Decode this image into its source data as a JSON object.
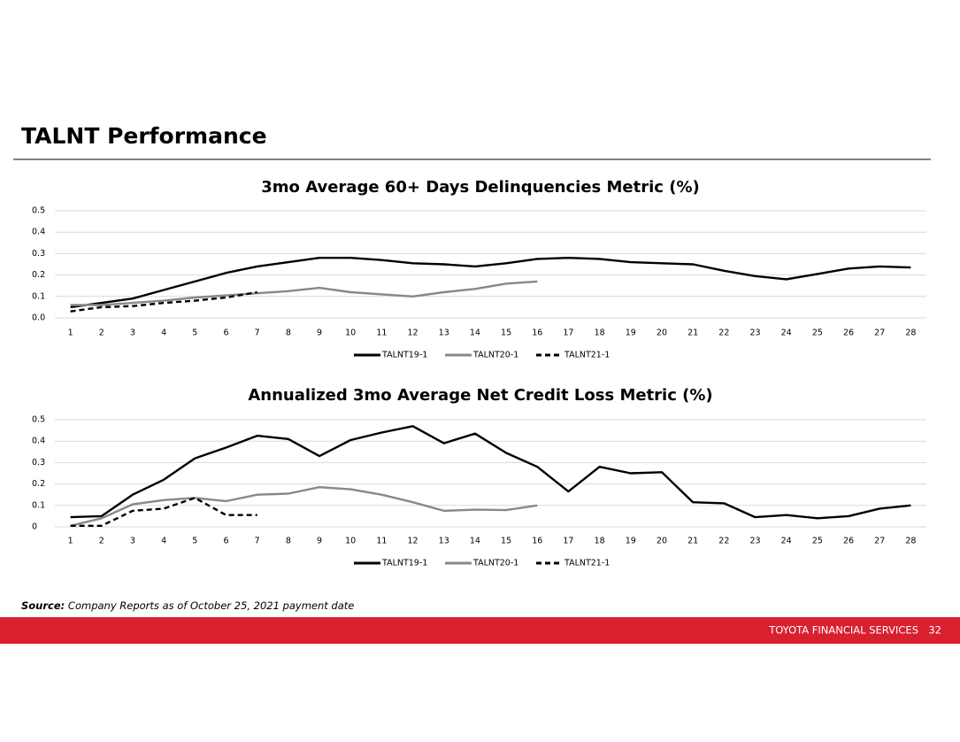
{
  "page": {
    "title": "TALNT Performance",
    "source": {
      "label": "Source:",
      "text": " Company Reports as of October 25, 2021 payment date"
    },
    "footer": {
      "company": "TOYOTA FINANCIAL SERVICES",
      "page": 32
    }
  },
  "chart_data": [
    {
      "type": "line",
      "title": "3mo Average 60+ Days Delinquencies Metric (%)",
      "categories": [
        "1",
        "2",
        "3",
        "4",
        "5",
        "6",
        "7",
        "8",
        "9",
        "10",
        "11",
        "12",
        "13",
        "14",
        "15",
        "16",
        "17",
        "18",
        "19",
        "20",
        "21",
        "22",
        "23",
        "24",
        "25",
        "26",
        "27",
        "28"
      ],
      "ylim": [
        0,
        0.5
      ],
      "yticks": [
        {
          "value": 0,
          "label": "0.0"
        },
        0.1,
        0.2,
        0.3,
        0.4,
        0.5
      ],
      "grid": true,
      "legend": "bottom",
      "series": [
        {
          "name": "TALNT19-1",
          "color": "#000000",
          "dashed": false,
          "values": [
            0.05,
            0.07,
            0.09,
            0.13,
            0.17,
            0.21,
            0.24,
            0.26,
            0.28,
            0.28,
            0.27,
            0.255,
            0.25,
            0.24,
            0.255,
            0.275,
            0.28,
            0.275,
            0.26,
            0.255,
            0.25,
            0.22,
            0.195,
            0.18,
            0.205,
            0.23,
            0.24,
            0.235
          ]
        },
        {
          "name": "TALNT20-1",
          "color": "#888888",
          "dashed": false,
          "values": [
            0.06,
            0.06,
            0.07,
            0.08,
            0.095,
            0.105,
            0.115,
            0.125,
            0.14,
            0.12,
            0.11,
            0.1,
            0.12,
            0.135,
            0.16,
            0.17,
            null,
            null,
            null,
            null,
            null,
            null,
            null,
            null,
            null,
            null,
            null,
            null
          ]
        },
        {
          "name": "TALNT21-1",
          "color": "#000000",
          "dashed": true,
          "values": [
            0.03,
            0.05,
            0.055,
            0.07,
            0.08,
            0.095,
            0.12,
            null,
            null,
            null,
            null,
            null,
            null,
            null,
            null,
            null,
            null,
            null,
            null,
            null,
            null,
            null,
            null,
            null,
            null,
            null,
            null,
            null
          ]
        }
      ]
    },
    {
      "type": "line",
      "title": "Annualized 3mo Average Net Credit Loss Metric (%)",
      "categories": [
        "1",
        "2",
        "3",
        "4",
        "5",
        "6",
        "7",
        "8",
        "9",
        "10",
        "11",
        "12",
        "13",
        "14",
        "15",
        "16",
        "17",
        "18",
        "19",
        "20",
        "21",
        "22",
        "23",
        "24",
        "25",
        "26",
        "27",
        "28"
      ],
      "ylim": [
        0,
        0.5
      ],
      "yticks": [
        0,
        0.1,
        0.2,
        0.3,
        0.4,
        0.5
      ],
      "grid": true,
      "legend": "bottom",
      "series": [
        {
          "name": "TALNT19-1",
          "color": "#000000",
          "dashed": false,
          "values": [
            0.045,
            0.05,
            0.15,
            0.22,
            0.32,
            0.37,
            0.425,
            0.41,
            0.33,
            0.405,
            0.44,
            0.47,
            0.39,
            0.435,
            0.345,
            0.28,
            0.165,
            0.28,
            0.25,
            0.255,
            0.115,
            0.11,
            0.045,
            0.055,
            0.04,
            0.05,
            0.085,
            0.1
          ]
        },
        {
          "name": "TALNT20-1",
          "color": "#888888",
          "dashed": false,
          "values": [
            0.005,
            0.04,
            0.105,
            0.125,
            0.135,
            0.12,
            0.15,
            0.155,
            0.185,
            0.175,
            0.15,
            0.115,
            0.075,
            0.08,
            0.078,
            0.1,
            null,
            null,
            null,
            null,
            null,
            null,
            null,
            null,
            null,
            null,
            null,
            null
          ]
        },
        {
          "name": "TALNT21-1",
          "color": "#000000",
          "dashed": true,
          "values": [
            0.005,
            0.005,
            0.075,
            0.085,
            0.135,
            0.055,
            0.055,
            null,
            null,
            null,
            null,
            null,
            null,
            null,
            null,
            null,
            null,
            null,
            null,
            null,
            null,
            null,
            null,
            null,
            null,
            null,
            null,
            null
          ]
        }
      ]
    }
  ]
}
